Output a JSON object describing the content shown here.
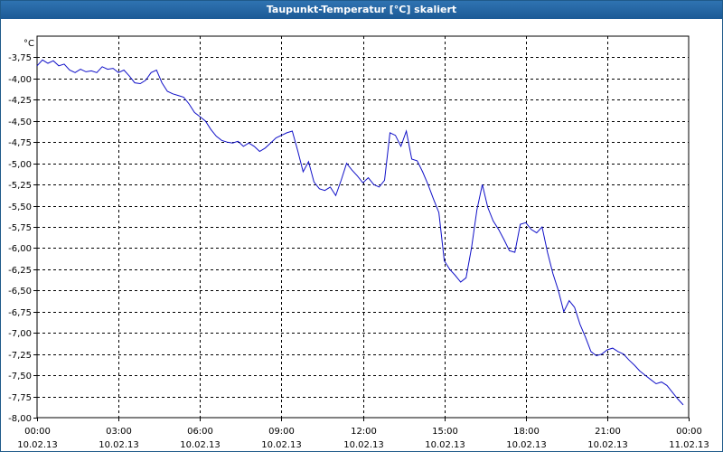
{
  "window": {
    "title": "Taupunkt-Temperatur [°C] skaliert"
  },
  "colors": {
    "line": "#1010c8",
    "grid": "#000000",
    "title_bar": "#1c5a96"
  },
  "chart_data": {
    "type": "line",
    "title": "Taupunkt-Temperatur [°C] skaliert",
    "ylabel": "°C",
    "ylim": [
      -8.0,
      -3.5
    ],
    "ytick_values": [
      -3.75,
      -4.0,
      -4.25,
      -4.5,
      -4.75,
      -5.0,
      -5.25,
      -5.5,
      -5.75,
      -6.0,
      -6.25,
      -6.5,
      -6.75,
      -7.0,
      -7.25,
      -7.5,
      -7.75,
      -8.0
    ],
    "ytick_labels": [
      "-3,75",
      "-4,00",
      "-4,25",
      "-4,50",
      "-4,75",
      "-5,00",
      "-5,25",
      "-5,50",
      "-5,75",
      "-6,00",
      "-6,25",
      "-6,50",
      "-6,75",
      "-7,00",
      "-7,25",
      "-7,50",
      "-7,75",
      "-8,00"
    ],
    "xlim": [
      0,
      24
    ],
    "xticks": [
      {
        "hour": 0,
        "time": "00:00",
        "date": "10.02.13"
      },
      {
        "hour": 3,
        "time": "03:00",
        "date": "10.02.13"
      },
      {
        "hour": 6,
        "time": "06:00",
        "date": "10.02.13"
      },
      {
        "hour": 9,
        "time": "09:00",
        "date": "10.02.13"
      },
      {
        "hour": 12,
        "time": "12:00",
        "date": "10.02.13"
      },
      {
        "hour": 15,
        "time": "15:00",
        "date": "10.02.13"
      },
      {
        "hour": 18,
        "time": "18:00",
        "date": "10.02.13"
      },
      {
        "hour": 21,
        "time": "21:00",
        "date": "10.02.13"
      },
      {
        "hour": 24,
        "time": "00:00",
        "date": "11.02.13"
      }
    ],
    "grid": true,
    "series": [
      {
        "x": [
          0,
          0.2,
          0.4,
          0.6,
          0.8,
          1.0,
          1.2,
          1.4,
          1.6,
          1.8,
          2.0,
          2.2,
          2.4,
          2.6,
          2.8,
          3.0,
          3.2,
          3.4,
          3.6,
          3.8,
          4.0,
          4.2,
          4.4,
          4.6,
          4.8,
          5.0,
          5.2,
          5.4,
          5.6,
          5.8,
          6.0,
          6.2,
          6.4,
          6.6,
          6.8,
          7.0,
          7.2,
          7.4,
          7.6,
          7.8,
          8.0,
          8.2,
          8.4,
          8.6,
          8.8,
          9.0,
          9.2,
          9.4,
          9.6,
          9.8,
          10.0,
          10.2,
          10.4,
          10.6,
          10.8,
          11.0,
          11.2,
          11.4,
          11.6,
          11.8,
          12.0,
          12.2,
          12.4,
          12.6,
          12.8,
          13.0,
          13.2,
          13.4,
          13.6,
          13.8,
          14.0,
          14.2,
          14.4,
          14.6,
          14.8,
          15.0,
          15.2,
          15.4,
          15.6,
          15.8,
          16.0,
          16.2,
          16.4,
          16.6,
          16.8,
          17.0,
          17.2,
          17.4,
          17.6,
          17.8,
          18.0,
          18.2,
          18.4,
          18.6,
          18.8,
          19.0,
          19.2,
          19.4,
          19.6,
          19.8,
          20.0,
          20.2,
          20.4,
          20.6,
          20.8,
          21.0,
          21.2,
          21.4,
          21.6,
          21.8,
          22.0,
          22.2,
          22.4,
          22.6,
          22.8,
          23.0,
          23.2,
          23.4,
          23.6,
          23.8
        ],
        "y": [
          -3.85,
          -3.78,
          -3.82,
          -3.79,
          -3.85,
          -3.83,
          -3.9,
          -3.93,
          -3.89,
          -3.92,
          -3.91,
          -3.93,
          -3.86,
          -3.89,
          -3.88,
          -3.93,
          -3.9,
          -3.97,
          -4.05,
          -4.06,
          -4.02,
          -3.93,
          -3.9,
          -4.05,
          -4.15,
          -4.18,
          -4.2,
          -4.22,
          -4.3,
          -4.4,
          -4.45,
          -4.5,
          -4.6,
          -4.68,
          -4.73,
          -4.75,
          -4.76,
          -4.74,
          -4.8,
          -4.76,
          -4.8,
          -4.86,
          -4.82,
          -4.76,
          -4.7,
          -4.67,
          -4.64,
          -4.62,
          -4.85,
          -5.1,
          -4.98,
          -5.22,
          -5.3,
          -5.32,
          -5.28,
          -5.38,
          -5.2,
          -5.0,
          -5.08,
          -5.15,
          -5.23,
          -5.17,
          -5.25,
          -5.28,
          -5.2,
          -4.64,
          -4.67,
          -4.8,
          -4.62,
          -4.95,
          -4.97,
          -5.1,
          -5.25,
          -5.42,
          -5.58,
          -6.15,
          -6.25,
          -6.32,
          -6.4,
          -6.35,
          -6.0,
          -5.55,
          -5.25,
          -5.52,
          -5.68,
          -5.78,
          -5.9,
          -6.03,
          -6.05,
          -5.72,
          -5.7,
          -5.78,
          -5.82,
          -5.75,
          -6.05,
          -6.3,
          -6.5,
          -6.75,
          -6.62,
          -6.7,
          -6.9,
          -7.05,
          -7.22,
          -7.27,
          -7.25,
          -7.2,
          -7.18,
          -7.22,
          -7.25,
          -7.32,
          -7.38,
          -7.45,
          -7.5,
          -7.55,
          -7.6,
          -7.58,
          -7.62,
          -7.7,
          -7.78,
          -7.85
        ]
      }
    ]
  }
}
